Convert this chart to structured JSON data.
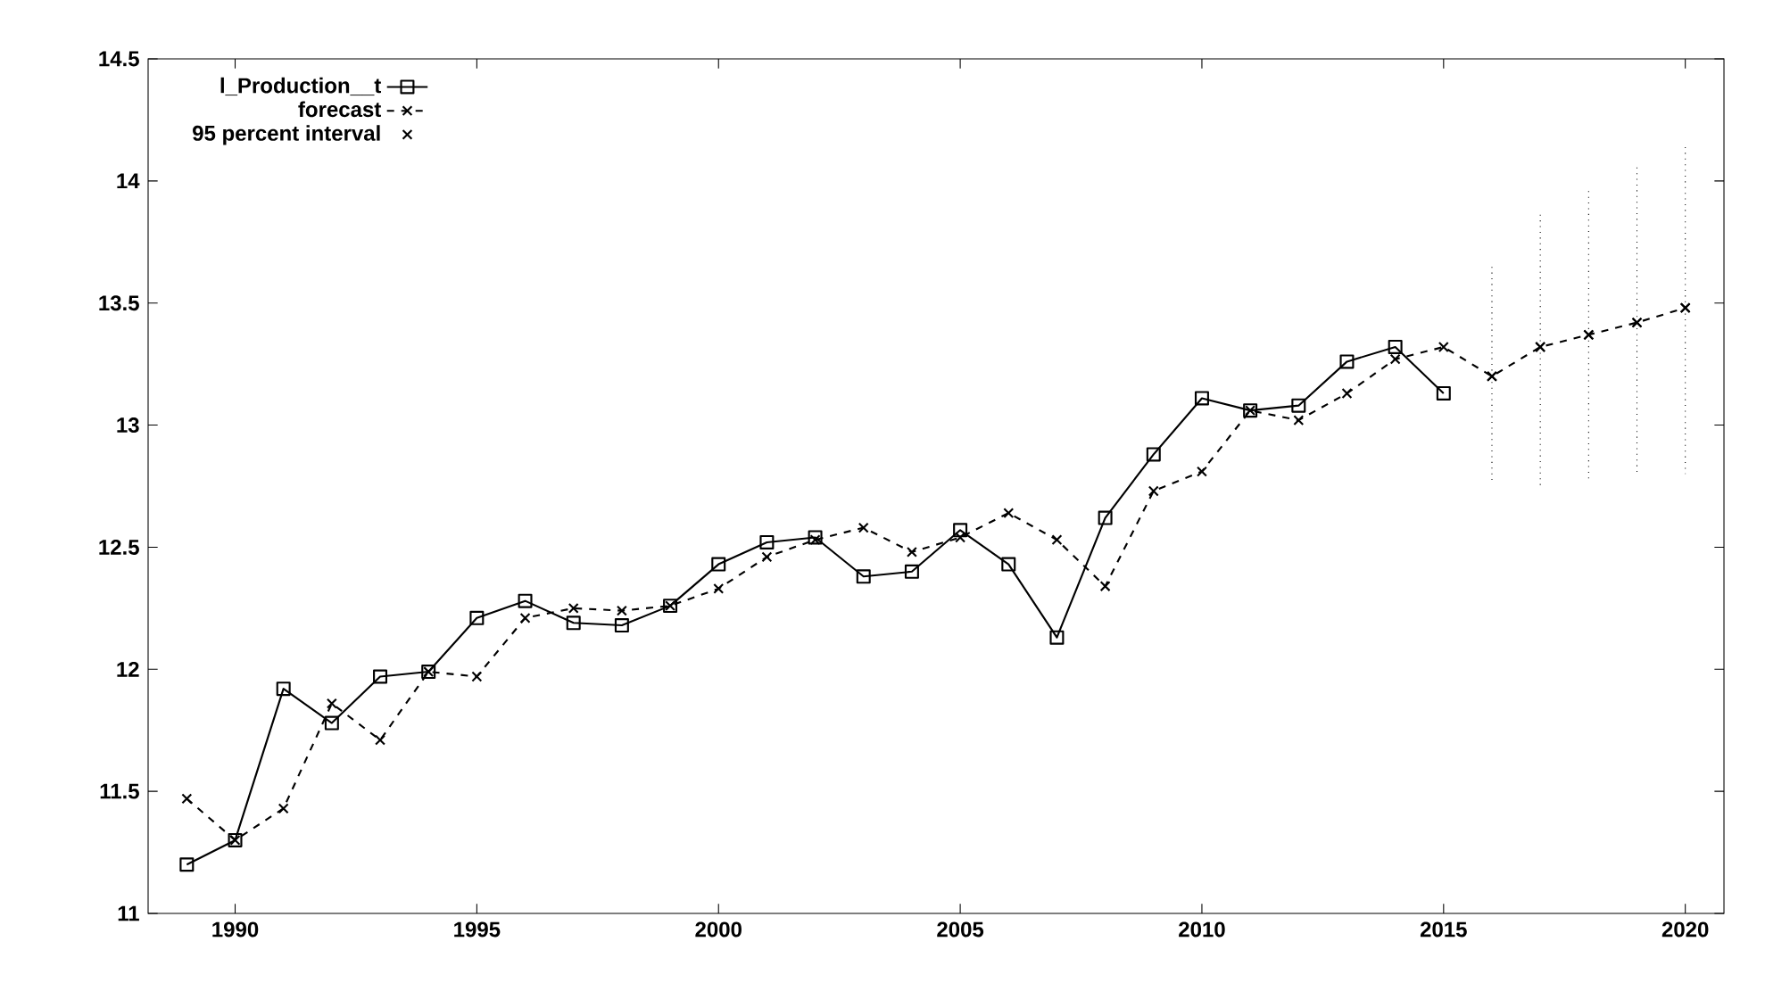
{
  "chart_data": {
    "type": "line",
    "x": [
      1989,
      1990,
      1991,
      1992,
      1993,
      1994,
      1995,
      1996,
      1997,
      1998,
      1999,
      2000,
      2001,
      2002,
      2003,
      2004,
      2005,
      2006,
      2007,
      2008,
      2009,
      2010,
      2011,
      2012,
      2013,
      2014,
      2015,
      2016,
      2017,
      2018,
      2019,
      2020
    ],
    "xlim": [
      1988.2,
      2020.8
    ],
    "ylim": [
      11,
      14.5
    ],
    "xticks": [
      1990,
      1995,
      2000,
      2005,
      2010,
      2015,
      2020
    ],
    "yticks": [
      11,
      11.5,
      12,
      12.5,
      13,
      13.5,
      14,
      14.5
    ],
    "legend": "top left",
    "series": [
      {
        "name": "l_Production__t",
        "color": "#000000",
        "marker": "square",
        "line_style": "solid",
        "values": [
          11.2,
          11.3,
          11.92,
          11.78,
          11.97,
          11.99,
          12.21,
          12.28,
          12.19,
          12.18,
          12.26,
          12.43,
          12.52,
          12.54,
          12.38,
          12.4,
          12.57,
          12.43,
          12.13,
          12.62,
          12.88,
          13.11,
          13.06,
          13.08,
          13.26,
          13.32,
          13.13,
          null,
          null,
          null,
          null,
          null
        ]
      },
      {
        "name": "forecast",
        "color": "#000000",
        "marker": "cross",
        "line_style": "dashed",
        "values": [
          11.47,
          11.3,
          11.43,
          11.86,
          11.71,
          11.99,
          11.97,
          12.21,
          12.25,
          12.24,
          12.26,
          12.33,
          12.46,
          12.53,
          12.58,
          12.48,
          12.54,
          12.64,
          12.53,
          12.34,
          12.73,
          12.81,
          13.06,
          13.02,
          13.13,
          13.27,
          13.32,
          13.2,
          13.32,
          13.37,
          13.42,
          13.48
        ]
      },
      {
        "name": "95 percent interval",
        "type": "scatter",
        "color": "#000000",
        "marker": "cross",
        "line_style": "dotted",
        "x": [
          2016,
          2017,
          2018,
          2019,
          2020
        ],
        "values": [
          13.2,
          13.32,
          13.37,
          13.42,
          13.48
        ],
        "errors": [
          [
            12.77,
            13.65
          ],
          [
            12.75,
            13.88
          ],
          [
            12.77,
            13.97
          ],
          [
            12.79,
            14.06
          ],
          [
            12.8,
            14.15
          ]
        ]
      }
    ]
  }
}
